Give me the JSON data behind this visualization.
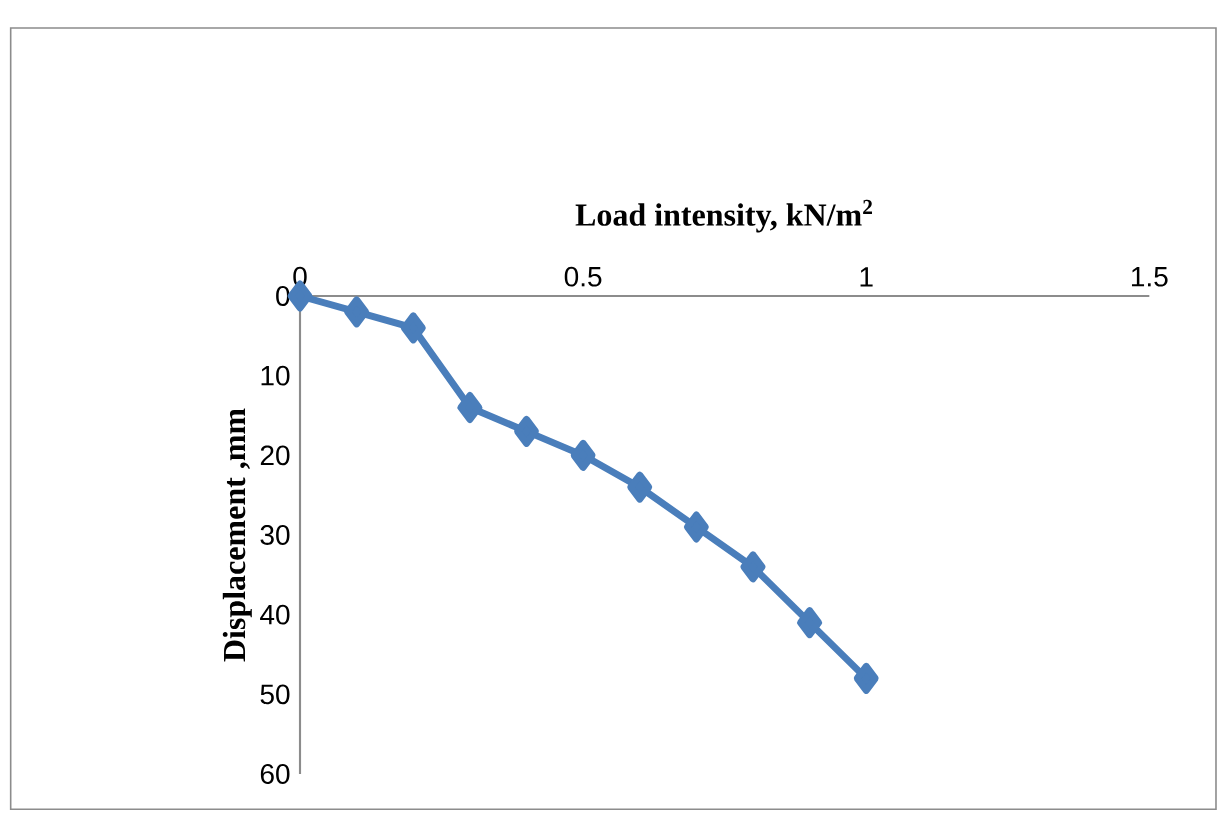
{
  "chart_data": {
    "type": "line",
    "xlabel": "Load intensity, kN/m$^{2}$",
    "ylabel": "Displacement ,mm",
    "x": [
      0,
      0.1,
      0.2,
      0.3,
      0.4,
      0.5,
      0.6,
      0.7,
      0.8,
      0.9,
      1.0
    ],
    "series": [
      {
        "color": "#4a7ebb",
        "values": [
          0,
          2,
          4,
          14,
          17,
          20,
          24,
          29,
          34,
          41,
          48
        ]
      }
    ],
    "xlim": [
      0,
      1.5
    ],
    "xticks": [
      0,
      0.5,
      1,
      1.5
    ],
    "ylim": [
      60,
      0
    ],
    "yticks": [
      0,
      10,
      20,
      30,
      40,
      50,
      60
    ],
    "marker": "diamond",
    "line_style": "solid",
    "grid": false,
    "legend": false
  }
}
